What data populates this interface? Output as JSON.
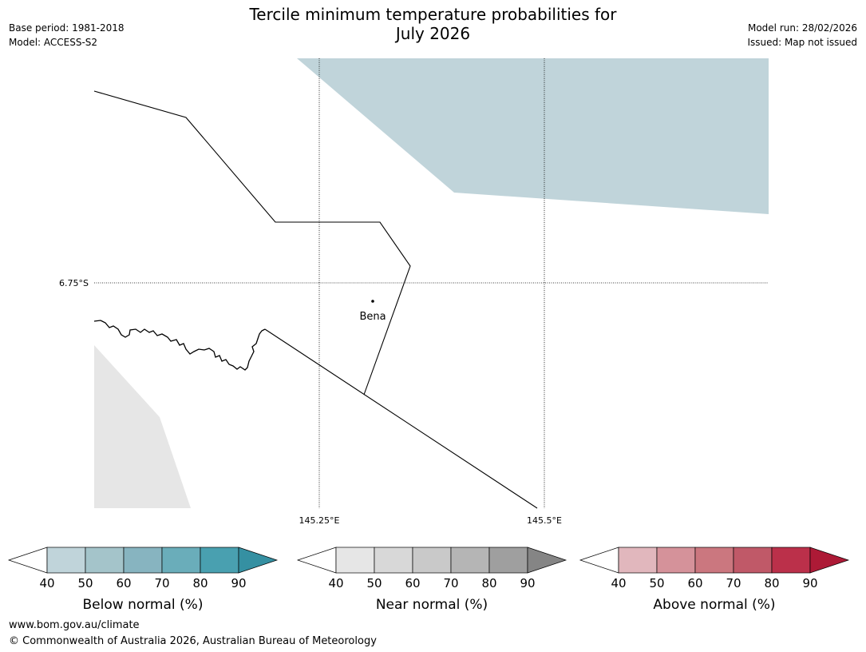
{
  "header": {
    "title_line1": "Tercile minimum temperature probabilities for",
    "title_line2": "July 2026",
    "base_period": "Base period: 1981-2018",
    "model": "Model: ACCESS-S2",
    "model_run": "Model run: 28/02/2026",
    "issued": "Issued: Map not issued"
  },
  "map": {
    "place_name": "Bena",
    "lat_label": "6.75°S",
    "lon_labels": [
      "145.25°E",
      "145.5°E"
    ],
    "colors": {
      "below_normal_shade": "#c0d4da",
      "no_data_shade": "#e6e6e6"
    }
  },
  "legends": [
    {
      "label": "Below normal (%)",
      "ticks": [
        "40",
        "50",
        "60",
        "70",
        "80",
        "90"
      ],
      "colors": [
        "#ffffff",
        "#c0d4da",
        "#a4c4ca",
        "#87b4c0",
        "#6aadba",
        "#49a0b0",
        "#3590a2"
      ]
    },
    {
      "label": "Near normal (%)",
      "ticks": [
        "40",
        "50",
        "60",
        "70",
        "80",
        "90"
      ],
      "colors": [
        "#ffffff",
        "#e6e6e6",
        "#d8d8d8",
        "#c9c9c9",
        "#b5b5b5",
        "#9f9f9f",
        "#858585"
      ]
    },
    {
      "label": "Above normal (%)",
      "ticks": [
        "40",
        "50",
        "60",
        "70",
        "80",
        "90"
      ],
      "colors": [
        "#ffffff",
        "#e1b7bd",
        "#d5929a",
        "#cb777f",
        "#c05968",
        "#bb304a",
        "#ad1a36"
      ]
    }
  ],
  "footer": {
    "url": "www.bom.gov.au/climate",
    "copyright": "© Commonwealth of Australia 2026, Australian Bureau of Meteorology"
  }
}
